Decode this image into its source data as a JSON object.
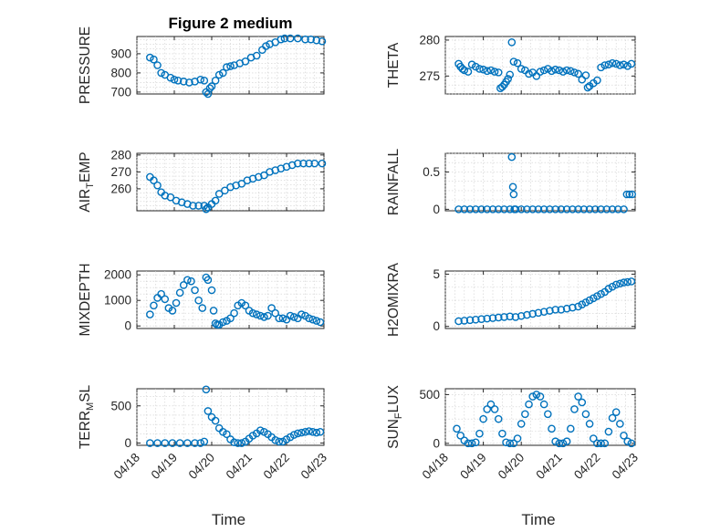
{
  "chart_data": [
    {
      "type": "scatter",
      "title": "Figure 2 medium",
      "ylabel": "PRESSURE",
      "ylim": [
        690,
        990
      ],
      "yticks": [
        700,
        800,
        900
      ],
      "xlim": [
        0,
        5
      ],
      "xticks": [
        "04/18",
        "04/19",
        "04/20",
        "04/21",
        "04/22",
        "04/23"
      ],
      "show_xticklabels": false,
      "xlabel": "",
      "series": [
        {
          "x": [
            0.35,
            0.45,
            0.55,
            0.65,
            0.75,
            0.9,
            1.0,
            1.1,
            1.25,
            1.4,
            1.55,
            1.7,
            1.8,
            1.85,
            1.9,
            1.95,
            2.0,
            2.1,
            2.2,
            2.3,
            2.4,
            2.5,
            2.6,
            2.75,
            2.9,
            3.05,
            3.2,
            3.35,
            3.45,
            3.55,
            3.7,
            3.85,
            3.95,
            4.1,
            4.3,
            4.5,
            4.65,
            4.8,
            4.95
          ],
          "y": [
            880,
            870,
            840,
            800,
            790,
            775,
            765,
            760,
            755,
            750,
            755,
            765,
            760,
            700,
            690,
            720,
            730,
            760,
            790,
            800,
            830,
            835,
            840,
            850,
            860,
            880,
            890,
            920,
            940,
            950,
            960,
            975,
            980,
            980,
            980,
            975,
            975,
            970,
            965
          ]
        }
      ]
    },
    {
      "type": "scatter",
      "title": "",
      "ylabel": "THETA",
      "ylim": [
        272.5,
        280.5
      ],
      "yticks": [
        275,
        280
      ],
      "xlim": [
        0,
        5
      ],
      "xticks": [
        "04/18",
        "04/19",
        "04/20",
        "04/21",
        "04/22",
        "04/23"
      ],
      "show_xticklabels": false,
      "xlabel": "",
      "series": [
        {
          "x": [
            0.35,
            0.4,
            0.45,
            0.5,
            0.6,
            0.7,
            0.8,
            0.9,
            1.0,
            1.1,
            1.2,
            1.3,
            1.4,
            1.45,
            1.5,
            1.55,
            1.6,
            1.65,
            1.7,
            1.75,
            1.8,
            1.9,
            2.0,
            2.1,
            2.2,
            2.3,
            2.4,
            2.5,
            2.6,
            2.7,
            2.8,
            2.9,
            3.0,
            3.1,
            3.2,
            3.3,
            3.4,
            3.5,
            3.6,
            3.7,
            3.75,
            3.8,
            3.9,
            4.0,
            4.1,
            4.2,
            4.3,
            4.4,
            4.5,
            4.6,
            4.7,
            4.8,
            4.9
          ],
          "y": [
            276.7,
            276.3,
            276.0,
            275.8,
            275.6,
            276.6,
            276.3,
            276.0,
            275.9,
            275.7,
            275.8,
            275.6,
            275.5,
            273.3,
            273.5,
            273.8,
            274.2,
            274.6,
            275.2,
            279.7,
            277.0,
            276.8,
            276.0,
            275.8,
            275.3,
            275.5,
            275.0,
            275.6,
            275.8,
            276.0,
            275.7,
            275.9,
            275.8,
            275.6,
            275.8,
            275.7,
            275.5,
            275.3,
            274.5,
            275.1,
            273.4,
            273.6,
            274.0,
            274.4,
            276.2,
            276.5,
            276.6,
            276.8,
            276.7,
            276.5,
            276.6,
            276.4,
            276.7
          ]
        }
      ]
    },
    {
      "type": "scatter",
      "title": "",
      "ylabel": "AIR_TEMP",
      "ylim": [
        247,
        281
      ],
      "yticks": [
        260,
        270,
        280
      ],
      "xlim": [
        0,
        5
      ],
      "xticks": [
        "04/18",
        "04/19",
        "04/20",
        "04/21",
        "04/22",
        "04/23"
      ],
      "show_xticklabels": false,
      "xlabel": "",
      "series": [
        {
          "x": [
            0.35,
            0.45,
            0.55,
            0.65,
            0.75,
            0.9,
            1.05,
            1.2,
            1.35,
            1.5,
            1.65,
            1.8,
            1.85,
            1.9,
            2.0,
            2.1,
            2.2,
            2.35,
            2.5,
            2.65,
            2.8,
            2.95,
            3.1,
            3.25,
            3.4,
            3.55,
            3.7,
            3.85,
            4.0,
            4.15,
            4.3,
            4.45,
            4.6,
            4.75,
            4.95
          ],
          "y": [
            267,
            265,
            262,
            258,
            256,
            255,
            253,
            252,
            251,
            250,
            250,
            250,
            248,
            249,
            251,
            253,
            257,
            259,
            261,
            262,
            263,
            265,
            266,
            267,
            268,
            270,
            271,
            272,
            273,
            274,
            275,
            275,
            275,
            275,
            275
          ]
        }
      ]
    },
    {
      "type": "scatter",
      "title": "",
      "ylabel": "RAINFALL",
      "ylim": [
        -0.02,
        0.75
      ],
      "yticks": [
        0,
        0.5
      ],
      "ytick_labels": [
        "0",
        "0.5"
      ],
      "xlim": [
        0,
        5
      ],
      "xticks": [
        "04/18",
        "04/19",
        "04/20",
        "04/21",
        "04/22",
        "04/23"
      ],
      "show_xticklabels": false,
      "xlabel": "",
      "series": [
        {
          "x": [
            0.35,
            0.5,
            0.65,
            0.8,
            0.95,
            1.1,
            1.25,
            1.4,
            1.55,
            1.7,
            1.75,
            1.78,
            1.8,
            1.82,
            1.85,
            2.0,
            2.15,
            2.3,
            2.45,
            2.6,
            2.75,
            2.9,
            3.05,
            3.2,
            3.35,
            3.5,
            3.65,
            3.8,
            3.95,
            4.1,
            4.25,
            4.4,
            4.55,
            4.7,
            4.78,
            4.85,
            4.92
          ],
          "y": [
            0,
            0,
            0,
            0,
            0,
            0,
            0,
            0,
            0,
            0,
            0.7,
            0.3,
            0.2,
            0,
            0,
            0,
            0,
            0,
            0,
            0,
            0,
            0,
            0,
            0,
            0,
            0,
            0,
            0,
            0,
            0,
            0,
            0,
            0,
            0,
            0.2,
            0.2,
            0.2
          ]
        }
      ]
    },
    {
      "type": "scatter",
      "title": "",
      "ylabel": "MIXDEPTH",
      "ylim": [
        -100,
        2150
      ],
      "yticks": [
        0,
        1000,
        2000
      ],
      "xlim": [
        0,
        5
      ],
      "xticks": [
        "04/18",
        "04/19",
        "04/20",
        "04/21",
        "04/22",
        "04/23"
      ],
      "show_xticklabels": false,
      "xlabel": "",
      "series": [
        {
          "x": [
            0.35,
            0.45,
            0.55,
            0.65,
            0.75,
            0.85,
            0.95,
            1.05,
            1.15,
            1.25,
            1.35,
            1.45,
            1.55,
            1.65,
            1.75,
            1.85,
            1.9,
            2.0,
            2.05,
            2.1,
            2.15,
            2.2,
            2.3,
            2.4,
            2.5,
            2.6,
            2.7,
            2.8,
            2.9,
            3.0,
            3.1,
            3.2,
            3.3,
            3.4,
            3.5,
            3.6,
            3.7,
            3.8,
            3.9,
            4.0,
            4.1,
            4.2,
            4.3,
            4.4,
            4.5,
            4.6,
            4.7,
            4.8,
            4.9
          ],
          "y": [
            450,
            800,
            1100,
            1250,
            1050,
            700,
            600,
            900,
            1300,
            1600,
            1800,
            1750,
            1400,
            1000,
            700,
            1900,
            1800,
            1400,
            600,
            100,
            50,
            50,
            150,
            200,
            300,
            500,
            800,
            900,
            800,
            600,
            500,
            450,
            400,
            350,
            400,
            700,
            500,
            300,
            300,
            250,
            400,
            350,
            300,
            450,
            400,
            300,
            250,
            200,
            150
          ]
        }
      ]
    },
    {
      "type": "scatter",
      "title": "",
      "ylabel": "H2OMIXRA",
      "ylim": [
        -0.2,
        5.3
      ],
      "yticks": [
        0,
        5
      ],
      "xlim": [
        0,
        5
      ],
      "xticks": [
        "04/18",
        "04/19",
        "04/20",
        "04/21",
        "04/22",
        "04/23"
      ],
      "show_xticklabels": false,
      "xlabel": "",
      "series": [
        {
          "x": [
            0.35,
            0.5,
            0.65,
            0.8,
            0.95,
            1.1,
            1.25,
            1.4,
            1.55,
            1.7,
            1.85,
            2.0,
            2.15,
            2.3,
            2.45,
            2.6,
            2.75,
            2.9,
            3.05,
            3.2,
            3.35,
            3.5,
            3.6,
            3.7,
            3.8,
            3.9,
            4.0,
            4.1,
            4.2,
            4.3,
            4.4,
            4.5,
            4.6,
            4.7,
            4.8,
            4.9
          ],
          "y": [
            0.5,
            0.55,
            0.6,
            0.65,
            0.7,
            0.75,
            0.8,
            0.85,
            0.9,
            0.95,
            0.9,
            1.0,
            1.1,
            1.2,
            1.3,
            1.4,
            1.5,
            1.6,
            1.6,
            1.7,
            1.8,
            1.9,
            2.1,
            2.3,
            2.5,
            2.7,
            2.9,
            3.1,
            3.3,
            3.6,
            3.8,
            4.0,
            4.1,
            4.2,
            4.25,
            4.3
          ]
        }
      ]
    },
    {
      "type": "scatter",
      "title": "",
      "ylabel": "TERR_MSL",
      "ylim": [
        -30,
        730
      ],
      "yticks": [
        0,
        500
      ],
      "xlim": [
        0,
        5
      ],
      "xticks": [
        "04/18",
        "04/19",
        "04/20",
        "04/21",
        "04/22",
        "04/23"
      ],
      "show_xticklabels": true,
      "xlabel": "Time",
      "series": [
        {
          "x": [
            0.35,
            0.55,
            0.75,
            0.95,
            1.15,
            1.35,
            1.55,
            1.7,
            1.8,
            1.85,
            1.9,
            2.0,
            2.1,
            2.2,
            2.3,
            2.4,
            2.5,
            2.6,
            2.7,
            2.8,
            2.9,
            3.0,
            3.1,
            3.2,
            3.3,
            3.4,
            3.5,
            3.6,
            3.7,
            3.8,
            3.9,
            4.0,
            4.1,
            4.2,
            4.3,
            4.4,
            4.5,
            4.6,
            4.7,
            4.8,
            4.9
          ],
          "y": [
            0,
            0,
            0,
            0,
            0,
            0,
            0,
            0,
            20,
            720,
            430,
            350,
            300,
            200,
            150,
            120,
            50,
            10,
            0,
            0,
            20,
            60,
            100,
            130,
            170,
            150,
            120,
            80,
            40,
            20,
            20,
            50,
            80,
            110,
            130,
            140,
            150,
            160,
            150,
            140,
            150
          ]
        }
      ]
    },
    {
      "type": "scatter",
      "title": "",
      "ylabel": "SUN_FLUX",
      "ylim": [
        -20,
        560
      ],
      "yticks": [
        0,
        500
      ],
      "xlim": [
        0,
        5
      ],
      "xticks": [
        "04/18",
        "04/19",
        "04/20",
        "04/21",
        "04/22",
        "04/23"
      ],
      "show_xticklabels": true,
      "xlabel": "Time",
      "series": [
        {
          "x": [
            0.3,
            0.4,
            0.5,
            0.6,
            0.7,
            0.8,
            0.9,
            1.0,
            1.1,
            1.2,
            1.3,
            1.4,
            1.5,
            1.6,
            1.7,
            1.8,
            1.9,
            2.0,
            2.1,
            2.2,
            2.3,
            2.4,
            2.5,
            2.6,
            2.7,
            2.8,
            2.9,
            3.0,
            3.1,
            3.2,
            3.3,
            3.4,
            3.5,
            3.6,
            3.7,
            3.8,
            3.9,
            4.0,
            4.1,
            4.2,
            4.3,
            4.4,
            4.5,
            4.6,
            4.7,
            4.8,
            4.9
          ],
          "y": [
            150,
            80,
            30,
            0,
            0,
            10,
            100,
            250,
            350,
            400,
            350,
            250,
            100,
            10,
            0,
            0,
            50,
            200,
            300,
            400,
            480,
            500,
            480,
            400,
            300,
            150,
            20,
            0,
            0,
            20,
            150,
            350,
            480,
            420,
            300,
            200,
            50,
            0,
            0,
            0,
            120,
            260,
            320,
            200,
            80,
            20,
            0
          ]
        }
      ]
    }
  ]
}
